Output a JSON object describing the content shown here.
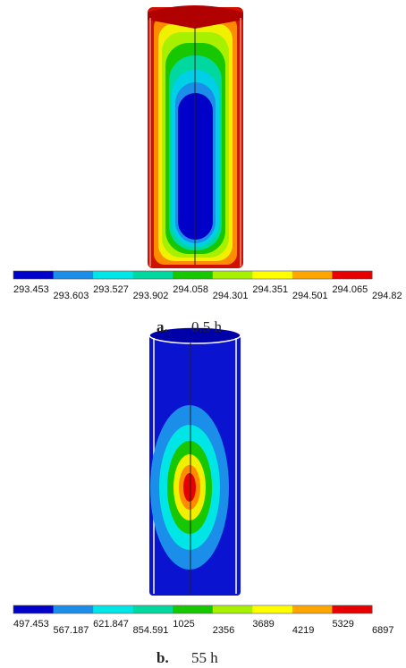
{
  "panels": [
    {
      "legend": {
        "labels": [
          "293.453",
          "293.603",
          "293.527",
          "293.902",
          "294.058",
          "294.301",
          "294.351",
          "294.501",
          "294.065",
          "294.82"
        ],
        "colors": [
          "#0000c8",
          "#1a8ee8",
          "#00e5e5",
          "#00d8a0",
          "#17c800",
          "#a6f000",
          "#ffff00",
          "#ffa500",
          "#e60000"
        ]
      },
      "caption": {
        "label": "a.",
        "text": "0.5 h"
      }
    },
    {
      "legend": {
        "labels": [
          "497.453",
          "567.187",
          "621.847",
          "854.591",
          "1025",
          "2356",
          "3689",
          "4219",
          "5329",
          "6897"
        ],
        "colors": [
          "#0000c8",
          "#1a8ee8",
          "#00e5e5",
          "#00d8a0",
          "#17c800",
          "#a6f000",
          "#ffff00",
          "#ffa500",
          "#e60000"
        ]
      },
      "caption": {
        "label": "b.",
        "text": "55 h"
      }
    }
  ]
}
